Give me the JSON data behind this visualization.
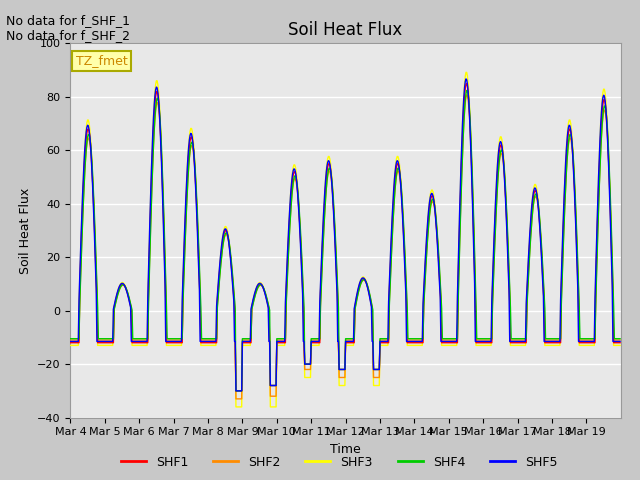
{
  "title": "Soil Heat Flux",
  "ylabel": "Soil Heat Flux",
  "xlabel": "Time",
  "ylim": [
    -40,
    100
  ],
  "yticks": [
    -40,
    -20,
    0,
    20,
    40,
    60,
    80,
    100
  ],
  "x_labels": [
    "Mar 4",
    "Mar 5",
    "Mar 6",
    "Mar 7",
    "Mar 8",
    "Mar 9",
    "Mar 10",
    "Mar 11",
    "Mar 12",
    "Mar 13",
    "Mar 14",
    "Mar 15",
    "Mar 16",
    "Mar 17",
    "Mar 18",
    "Mar 19"
  ],
  "colors": {
    "SHF1": "#ff0000",
    "SHF2": "#ff8c00",
    "SHF3": "#ffff00",
    "SHF4": "#00cc00",
    "SHF5": "#0000ff"
  },
  "fig_bg": "#c8c8c8",
  "plot_bg": "#e8e8e8",
  "annotation_text": "No data for f_SHF_1\nNo data for f_SHF_2",
  "legend_label": "TZ_fmet",
  "legend_color": "#cc8800",
  "legend_bg": "#ffffaa",
  "no_data_fontsize": 9,
  "title_fontsize": 12,
  "axis_label_fontsize": 9,
  "tick_fontsize": 8,
  "linewidth": 1.0,
  "day_peaks": [
    68,
    10,
    82,
    65,
    30,
    10,
    52,
    55,
    12,
    55,
    43,
    85,
    62,
    45,
    68,
    79
  ],
  "night_base": -12,
  "deep_valleys": {
    "4": -35,
    "5": -36,
    "9": -25,
    "10": -25
  }
}
